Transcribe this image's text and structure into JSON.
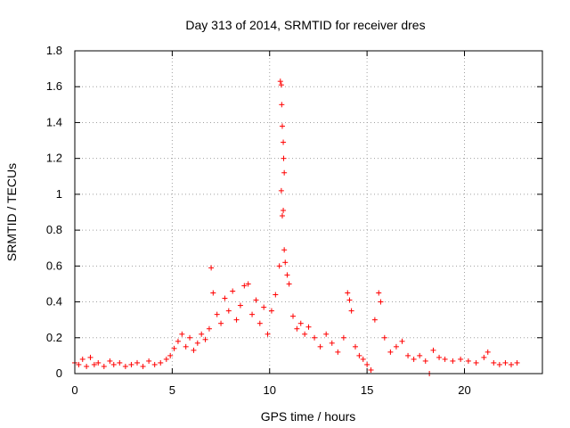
{
  "chart_data": {
    "type": "scatter",
    "title": "Day 313 of 2014, SRMTID for receiver dres",
    "xlabel": "GPS time / hours",
    "ylabel": "SRMTID / TECUs",
    "xlim": [
      0,
      24
    ],
    "ylim": [
      0,
      1.8
    ],
    "x_ticks": [
      "0",
      "5",
      "10",
      "15",
      "20"
    ],
    "y_ticks": [
      "0",
      "0.2",
      "0.4",
      "0.6",
      "0.8",
      "1",
      "1.2",
      "1.4",
      "1.6",
      "1.8"
    ],
    "x_tick_values": [
      0,
      5,
      10,
      15,
      20
    ],
    "y_tick_values": [
      0,
      0.2,
      0.4,
      0.6,
      0.8,
      1.0,
      1.2,
      1.4,
      1.6,
      1.8
    ],
    "grid": true,
    "marker": "plus",
    "color": "#ff0000",
    "series": [
      {
        "name": "SRMTID",
        "points": [
          [
            0.0,
            0.06
          ],
          [
            0.2,
            0.05
          ],
          [
            0.4,
            0.08
          ],
          [
            0.6,
            0.04
          ],
          [
            0.8,
            0.09
          ],
          [
            1.0,
            0.05
          ],
          [
            1.2,
            0.06
          ],
          [
            1.5,
            0.04
          ],
          [
            1.8,
            0.07
          ],
          [
            2.0,
            0.05
          ],
          [
            2.3,
            0.06
          ],
          [
            2.6,
            0.04
          ],
          [
            2.9,
            0.05
          ],
          [
            3.2,
            0.06
          ],
          [
            3.5,
            0.04
          ],
          [
            3.8,
            0.07
          ],
          [
            4.1,
            0.05
          ],
          [
            4.4,
            0.06
          ],
          [
            4.7,
            0.08
          ],
          [
            4.9,
            0.1
          ],
          [
            5.1,
            0.14
          ],
          [
            5.3,
            0.18
          ],
          [
            5.5,
            0.22
          ],
          [
            5.7,
            0.15
          ],
          [
            5.9,
            0.2
          ],
          [
            6.1,
            0.13
          ],
          [
            6.3,
            0.17
          ],
          [
            6.5,
            0.22
          ],
          [
            6.7,
            0.19
          ],
          [
            6.9,
            0.25
          ],
          [
            7.0,
            0.59
          ],
          [
            7.1,
            0.45
          ],
          [
            7.3,
            0.33
          ],
          [
            7.5,
            0.28
          ],
          [
            7.7,
            0.42
          ],
          [
            7.9,
            0.35
          ],
          [
            8.1,
            0.46
          ],
          [
            8.3,
            0.3
          ],
          [
            8.5,
            0.38
          ],
          [
            8.7,
            0.49
          ],
          [
            8.9,
            0.5
          ],
          [
            9.1,
            0.33
          ],
          [
            9.3,
            0.41
          ],
          [
            9.5,
            0.28
          ],
          [
            9.7,
            0.37
          ],
          [
            9.9,
            0.22
          ],
          [
            10.1,
            0.35
          ],
          [
            10.3,
            0.44
          ],
          [
            10.5,
            0.6
          ],
          [
            10.55,
            1.63
          ],
          [
            10.6,
            1.61
          ],
          [
            10.62,
            1.5
          ],
          [
            10.65,
            1.38
          ],
          [
            10.7,
            1.29
          ],
          [
            10.72,
            1.2
          ],
          [
            10.75,
            1.12
          ],
          [
            10.6,
            1.02
          ],
          [
            10.65,
            0.88
          ],
          [
            10.7,
            0.91
          ],
          [
            10.75,
            0.69
          ],
          [
            10.8,
            0.62
          ],
          [
            10.9,
            0.55
          ],
          [
            11.0,
            0.5
          ],
          [
            11.2,
            0.32
          ],
          [
            11.4,
            0.25
          ],
          [
            11.6,
            0.28
          ],
          [
            11.8,
            0.22
          ],
          [
            12.0,
            0.26
          ],
          [
            12.3,
            0.2
          ],
          [
            12.6,
            0.15
          ],
          [
            12.9,
            0.22
          ],
          [
            13.2,
            0.17
          ],
          [
            13.5,
            0.12
          ],
          [
            13.8,
            0.2
          ],
          [
            14.0,
            0.45
          ],
          [
            14.1,
            0.41
          ],
          [
            14.2,
            0.35
          ],
          [
            14.4,
            0.15
          ],
          [
            14.6,
            0.1
          ],
          [
            14.8,
            0.08
          ],
          [
            15.0,
            0.05
          ],
          [
            15.2,
            0.02
          ],
          [
            15.4,
            0.3
          ],
          [
            15.6,
            0.45
          ],
          [
            15.7,
            0.4
          ],
          [
            15.9,
            0.2
          ],
          [
            16.2,
            0.12
          ],
          [
            16.5,
            0.15
          ],
          [
            16.8,
            0.18
          ],
          [
            17.1,
            0.1
          ],
          [
            17.4,
            0.08
          ],
          [
            17.7,
            0.1
          ],
          [
            18.0,
            0.07
          ],
          [
            18.2,
            0.0
          ],
          [
            18.4,
            0.13
          ],
          [
            18.7,
            0.09
          ],
          [
            19.0,
            0.08
          ],
          [
            19.4,
            0.07
          ],
          [
            19.8,
            0.08
          ],
          [
            20.2,
            0.07
          ],
          [
            20.6,
            0.06
          ],
          [
            21.0,
            0.09
          ],
          [
            21.2,
            0.12
          ],
          [
            21.5,
            0.06
          ],
          [
            21.8,
            0.05
          ],
          [
            22.1,
            0.06
          ],
          [
            22.4,
            0.05
          ],
          [
            22.7,
            0.06
          ]
        ]
      }
    ]
  }
}
